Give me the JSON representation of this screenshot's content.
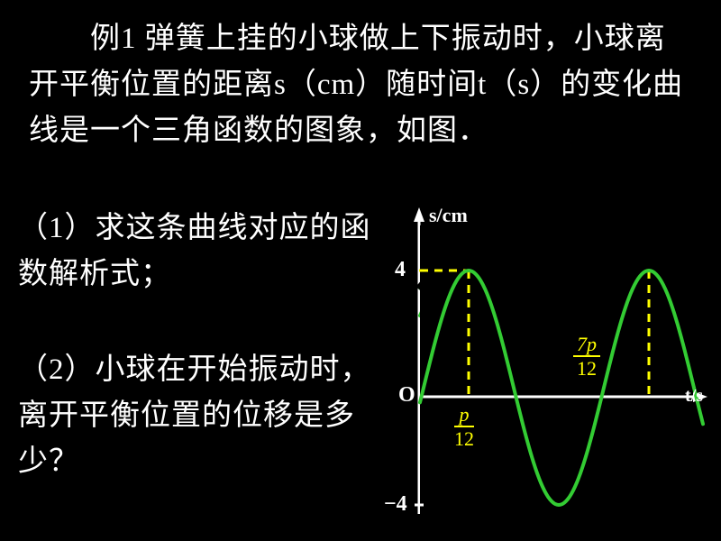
{
  "text": {
    "intro": "　　例1 弹簧上挂的小球做上下振动时，小球离开平衡位置的距离s（cm）随时间t（s）的变化曲线是一个三角函数的图象，如图．",
    "q1": "（1）求这条曲线对应的函数解析式；",
    "q2": "（2）小球在开始振动时，离开平衡位置的位移是多少？"
  },
  "chart": {
    "y_axis_label": "s/cm",
    "x_axis_label": "t/s",
    "origin_label": "O",
    "y_tick_top": "4",
    "y_tick_bottom": "−4",
    "frac1_num": "p",
    "frac1_den": "12",
    "frac2_num": "7p",
    "frac2_den": "12",
    "colors": {
      "curve": "#33cc33",
      "dashed": "#ffff00",
      "axes": "#ffffff",
      "text": "#ffffff",
      "accent": "#ffff00",
      "bg": "#000000"
    }
  }
}
